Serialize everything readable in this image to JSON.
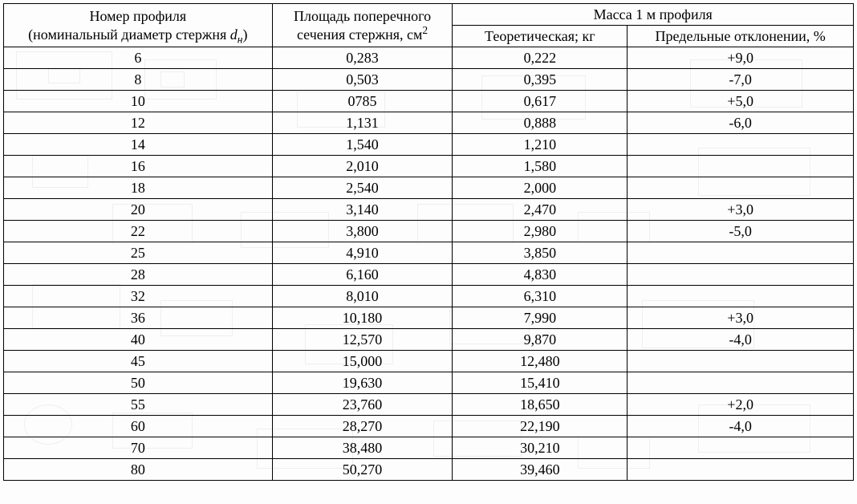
{
  "header": {
    "col1_line1": "Номер профиля",
    "col1_line2_pre": "(номинальный диаметр стержня ",
    "col1_line2_sym": "d",
    "col1_line2_sub": "н",
    "col1_line2_post": ")",
    "col2_line1": "Площадь поперечного",
    "col2_line2_pre": "сечения стержня, см",
    "col2_line2_sup": "2",
    "col3_span": "Масса 1 м профиля",
    "col3a": "Теоретическая; кг",
    "col3b": "Предельные отклонении, %"
  },
  "rows": [
    {
      "profile": "6",
      "area": "0,283",
      "mass": "0,222",
      "dev": "+9,0",
      "dev_top": true,
      "dev_bottom": false
    },
    {
      "profile": "8",
      "area": "0,503",
      "mass": "0,395",
      "dev": "-7,0",
      "dev_top": false,
      "dev_bottom": true
    },
    {
      "profile": "10",
      "area": "0785",
      "mass": "0,617",
      "dev": "+5,0",
      "dev_top": true,
      "dev_bottom": false
    },
    {
      "profile": "12",
      "area": "1,131",
      "mass": "0,888",
      "dev": "-6,0",
      "dev_top": false,
      "dev_bottom": false
    },
    {
      "profile": "14",
      "area": "1,540",
      "mass": "1,210",
      "dev": "",
      "dev_top": false,
      "dev_bottom": false
    },
    {
      "profile": "16",
      "area": "2,010",
      "mass": "1,580",
      "dev": "",
      "dev_top": false,
      "dev_bottom": false
    },
    {
      "profile": "18",
      "area": "2,540",
      "mass": "2,000",
      "dev": "",
      "dev_top": false,
      "dev_bottom": true
    },
    {
      "profile": "20",
      "area": "3,140",
      "mass": "2,470",
      "dev": "+3,0",
      "dev_top": true,
      "dev_bottom": false
    },
    {
      "profile": "22",
      "area": "3,800",
      "mass": "2,980",
      "dev": "-5,0",
      "dev_top": false,
      "dev_bottom": false
    },
    {
      "profile": "25",
      "area": "4,910",
      "mass": "3,850",
      "dev": "",
      "dev_top": false,
      "dev_bottom": false
    },
    {
      "profile": "28",
      "area": "6,160",
      "mass": "4,830",
      "dev": "",
      "dev_top": false,
      "dev_bottom": false
    },
    {
      "profile": "32",
      "area": "8,010",
      "mass": "6,310",
      "dev": "",
      "dev_top": false,
      "dev_bottom": true
    },
    {
      "profile": "36",
      "area": "10,180",
      "mass": "7,990",
      "dev": "+3,0",
      "dev_top": true,
      "dev_bottom": false
    },
    {
      "profile": "40",
      "area": "12,570",
      "mass": "9,870",
      "dev": "-4,0",
      "dev_top": false,
      "dev_bottom": false
    },
    {
      "profile": "45",
      "area": "15,000",
      "mass": "12,480",
      "dev": "",
      "dev_top": false,
      "dev_bottom": false
    },
    {
      "profile": "50",
      "area": "19,630",
      "mass": "15,410",
      "dev": "",
      "dev_top": false,
      "dev_bottom": true
    },
    {
      "profile": "55",
      "area": "23,760",
      "mass": "18,650",
      "dev": "+2,0",
      "dev_top": true,
      "dev_bottom": false
    },
    {
      "profile": "60",
      "area": "28,270",
      "mass": "22,190",
      "dev": "-4,0",
      "dev_top": false,
      "dev_bottom": false
    },
    {
      "profile": "70",
      "area": "38,480",
      "mass": "30,210",
      "dev": "",
      "dev_top": false,
      "dev_bottom": false
    },
    {
      "profile": "80",
      "area": "50,270",
      "mass": "39,460",
      "dev": "",
      "dev_top": false,
      "dev_bottom": true
    }
  ]
}
